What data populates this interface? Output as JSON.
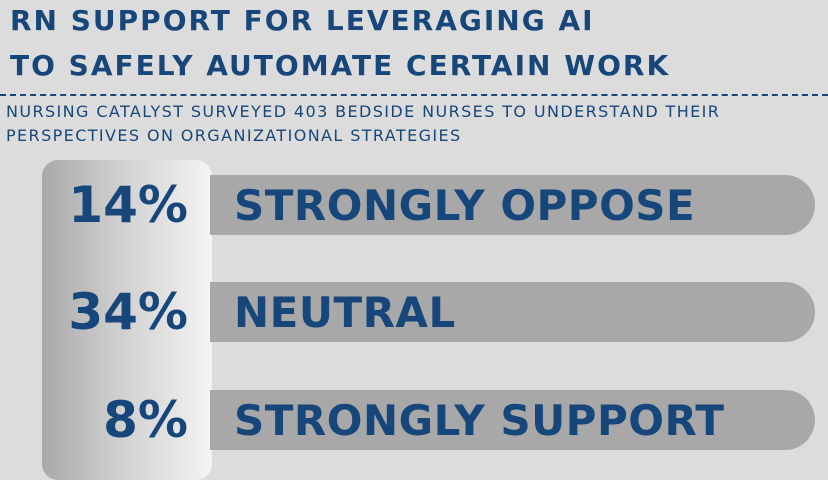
{
  "header": {
    "title_line1": "RN SUPPORT FOR LEVERAGING AI",
    "title_line2": "TO SAFELY AUTOMATE CERTAIN WORK",
    "subtitle_line1": "NURSING CATALYST SURVEYED 403 BEDSIDE NURSES TO UNDERSTAND THEIR",
    "subtitle_line2": "PERSPECTIVES ON ORGANIZATIONAL STRATEGIES"
  },
  "colors": {
    "text": "#17467a",
    "bar": "#a8a8a8",
    "background": "#dcdcdc"
  },
  "chart_data": {
    "type": "bar",
    "orientation": "horizontal",
    "title": "RN SUPPORT FOR LEVERAGING AI TO SAFELY AUTOMATE CERTAIN WORK",
    "categories": [
      "STRONGLY OPPOSE",
      "NEUTRAL",
      "STRONGLY SUPPORT"
    ],
    "values": [
      14,
      34,
      8
    ],
    "value_labels": [
      "14%",
      "34%",
      "8%"
    ],
    "unit": "%",
    "grid": false,
    "legend": "none"
  }
}
